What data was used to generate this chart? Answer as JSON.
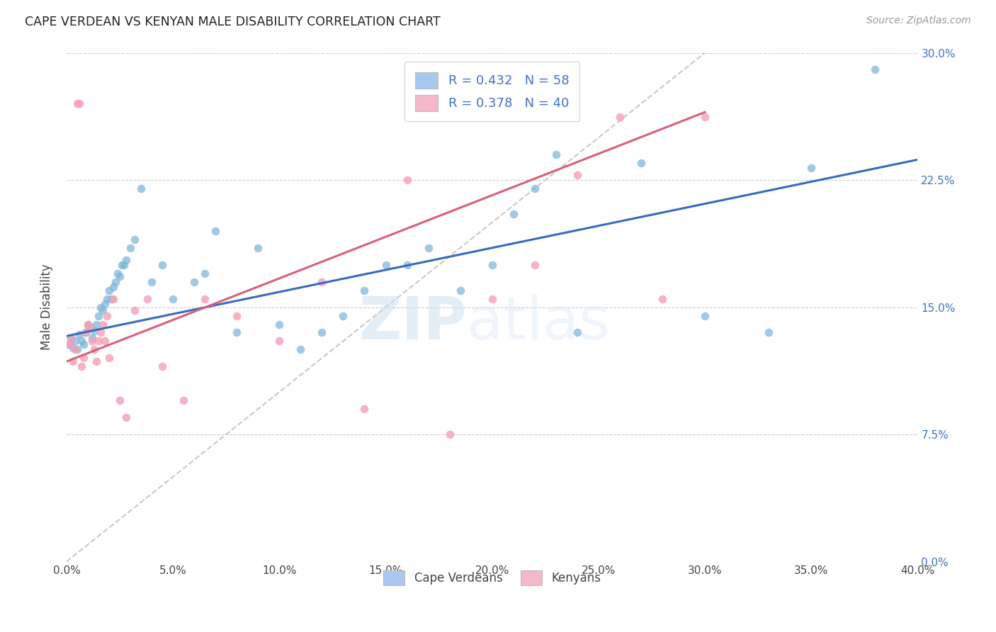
{
  "title": "CAPE VERDEAN VS KENYAN MALE DISABILITY CORRELATION CHART",
  "source": "Source: ZipAtlas.com",
  "ylabel": "Male Disability",
  "xlim": [
    0.0,
    0.4
  ],
  "ylim": [
    0.0,
    0.3
  ],
  "watermark_zip": "ZIP",
  "watermark_atlas": "atlas",
  "cape_verdean_color": "#7ab3d9",
  "kenyan_color": "#f4a0b5",
  "regression_line_color_blue": "#3a6abf",
  "regression_line_color_pink": "#d9607a",
  "diagonal_line_color": "#c8c8c8",
  "legend_cv_label": "R = 0.432   N = 58",
  "legend_kn_label": "R = 0.378   N = 40",
  "legend_cv_color": "#a8c8f0",
  "legend_kn_color": "#f4b8c8",
  "bottom_label_cv": "Cape Verdeans",
  "bottom_label_kn": "Kenyans",
  "cape_verdean_x": [
    0.001,
    0.002,
    0.003,
    0.004,
    0.005,
    0.006,
    0.007,
    0.008,
    0.009,
    0.01,
    0.011,
    0.012,
    0.013,
    0.014,
    0.015,
    0.016,
    0.017,
    0.018,
    0.019,
    0.02,
    0.021,
    0.022,
    0.023,
    0.024,
    0.025,
    0.026,
    0.027,
    0.028,
    0.03,
    0.032,
    0.035,
    0.04,
    0.045,
    0.05,
    0.06,
    0.065,
    0.07,
    0.08,
    0.09,
    0.1,
    0.11,
    0.12,
    0.13,
    0.14,
    0.15,
    0.16,
    0.17,
    0.185,
    0.2,
    0.21,
    0.22,
    0.23,
    0.24,
    0.27,
    0.3,
    0.33,
    0.35,
    0.38
  ],
  "cape_verdean_y": [
    0.128,
    0.132,
    0.126,
    0.13,
    0.125,
    0.134,
    0.13,
    0.128,
    0.135,
    0.14,
    0.138,
    0.132,
    0.136,
    0.14,
    0.145,
    0.15,
    0.148,
    0.152,
    0.155,
    0.16,
    0.155,
    0.162,
    0.165,
    0.17,
    0.168,
    0.175,
    0.175,
    0.178,
    0.185,
    0.19,
    0.22,
    0.165,
    0.175,
    0.155,
    0.165,
    0.17,
    0.195,
    0.135,
    0.185,
    0.14,
    0.125,
    0.135,
    0.145,
    0.16,
    0.175,
    0.175,
    0.185,
    0.16,
    0.175,
    0.205,
    0.22,
    0.24,
    0.135,
    0.235,
    0.145,
    0.135,
    0.232,
    0.29
  ],
  "kenyan_x": [
    0.001,
    0.002,
    0.003,
    0.004,
    0.005,
    0.006,
    0.007,
    0.008,
    0.009,
    0.01,
    0.011,
    0.012,
    0.013,
    0.014,
    0.015,
    0.016,
    0.017,
    0.018,
    0.019,
    0.02,
    0.022,
    0.025,
    0.028,
    0.032,
    0.038,
    0.045,
    0.055,
    0.065,
    0.08,
    0.1,
    0.12,
    0.14,
    0.16,
    0.18,
    0.2,
    0.22,
    0.24,
    0.26,
    0.28,
    0.3
  ],
  "kenyan_y": [
    0.128,
    0.132,
    0.118,
    0.125,
    0.27,
    0.27,
    0.115,
    0.12,
    0.135,
    0.14,
    0.138,
    0.13,
    0.125,
    0.118,
    0.13,
    0.135,
    0.14,
    0.13,
    0.145,
    0.12,
    0.155,
    0.095,
    0.085,
    0.148,
    0.155,
    0.115,
    0.095,
    0.155,
    0.145,
    0.13,
    0.165,
    0.09,
    0.225,
    0.075,
    0.155,
    0.175,
    0.228,
    0.262,
    0.155,
    0.262
  ],
  "blue_line_x0": 0.0,
  "blue_line_y0": 0.133,
  "blue_line_x1": 0.4,
  "blue_line_y1": 0.237,
  "pink_line_x0": 0.0,
  "pink_line_y0": 0.118,
  "pink_line_x1": 0.3,
  "pink_line_y1": 0.265
}
